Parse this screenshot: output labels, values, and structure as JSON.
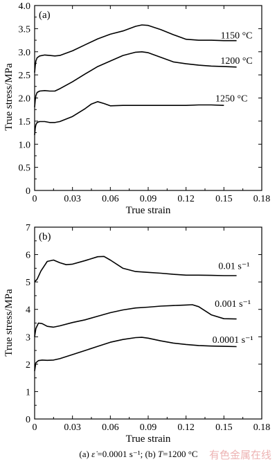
{
  "chart_data": [
    {
      "type": "line",
      "panel_label": "(a)",
      "xlabel": "True strain",
      "ylabel": "True stress/MPa",
      "xlim": [
        0,
        0.18
      ],
      "ylim": [
        0,
        4.0
      ],
      "xticks": [
        "0",
        "0.03",
        "0.06",
        "0.09",
        "0.12",
        "0.15",
        "0.18"
      ],
      "yticks": [
        "0",
        "0.5",
        "1.0",
        "1.5",
        "2.0",
        "2.5",
        "3.0",
        "3.5",
        "4.0"
      ],
      "grid": false,
      "series": [
        {
          "name": "1150 °C",
          "x": [
            0.0,
            0.0005,
            0.001,
            0.002,
            0.004,
            0.008,
            0.012,
            0.016,
            0.02,
            0.03,
            0.04,
            0.05,
            0.06,
            0.07,
            0.08,
            0.085,
            0.09,
            0.1,
            0.11,
            0.12,
            0.13,
            0.14,
            0.15,
            0.16
          ],
          "y": [
            2.55,
            2.7,
            2.8,
            2.87,
            2.91,
            2.93,
            2.92,
            2.91,
            2.92,
            3.02,
            3.15,
            3.28,
            3.38,
            3.45,
            3.55,
            3.58,
            3.57,
            3.48,
            3.37,
            3.27,
            3.25,
            3.25,
            3.24,
            3.24
          ]
        },
        {
          "name": "1200 °C",
          "x": [
            0.0,
            0.0005,
            0.001,
            0.002,
            0.004,
            0.008,
            0.012,
            0.016,
            0.02,
            0.03,
            0.04,
            0.05,
            0.06,
            0.07,
            0.08,
            0.085,
            0.09,
            0.1,
            0.11,
            0.12,
            0.13,
            0.14,
            0.15,
            0.16
          ],
          "y": [
            1.8,
            1.95,
            2.05,
            2.12,
            2.15,
            2.16,
            2.15,
            2.15,
            2.2,
            2.35,
            2.52,
            2.68,
            2.8,
            2.92,
            2.99,
            3.0,
            2.98,
            2.88,
            2.78,
            2.74,
            2.71,
            2.69,
            2.68,
            2.67
          ]
        },
        {
          "name": "1250 °C",
          "x": [
            0.0,
            0.0005,
            0.001,
            0.002,
            0.004,
            0.008,
            0.012,
            0.016,
            0.02,
            0.03,
            0.04,
            0.045,
            0.05,
            0.055,
            0.06,
            0.07,
            0.08,
            0.09,
            0.1,
            0.11,
            0.12,
            0.13,
            0.14,
            0.15
          ],
          "y": [
            1.2,
            1.35,
            1.42,
            1.47,
            1.49,
            1.49,
            1.47,
            1.47,
            1.49,
            1.6,
            1.77,
            1.87,
            1.92,
            1.88,
            1.83,
            1.84,
            1.84,
            1.84,
            1.84,
            1.84,
            1.84,
            1.85,
            1.85,
            1.84
          ]
        }
      ]
    },
    {
      "type": "line",
      "panel_label": "(b)",
      "xlabel": "True strain",
      "ylabel": "True stress/MPa",
      "xlim": [
        0,
        0.18
      ],
      "ylim": [
        0,
        7
      ],
      "xticks": [
        "0",
        "0.03",
        "0.06",
        "0.09",
        "0.12",
        "0.15",
        "0.18"
      ],
      "yticks": [
        "0",
        "1",
        "2",
        "3",
        "4",
        "5",
        "6",
        "7"
      ],
      "grid": false,
      "series": [
        {
          "name": "0.01 s⁻¹",
          "x": [
            0.0,
            0.002,
            0.005,
            0.01,
            0.015,
            0.02,
            0.025,
            0.03,
            0.04,
            0.05,
            0.055,
            0.06,
            0.07,
            0.08,
            0.09,
            0.1,
            0.11,
            0.12,
            0.13,
            0.14,
            0.15,
            0.16
          ],
          "y": [
            5.0,
            5.1,
            5.4,
            5.75,
            5.8,
            5.7,
            5.63,
            5.65,
            5.78,
            5.92,
            5.93,
            5.8,
            5.5,
            5.38,
            5.35,
            5.32,
            5.28,
            5.25,
            5.25,
            5.24,
            5.23,
            5.23
          ]
        },
        {
          "name": "0.001 s⁻¹",
          "x": [
            0.0,
            0.001,
            0.003,
            0.006,
            0.01,
            0.015,
            0.02,
            0.03,
            0.04,
            0.05,
            0.06,
            0.07,
            0.08,
            0.09,
            0.1,
            0.11,
            0.12,
            0.125,
            0.13,
            0.14,
            0.15,
            0.16
          ],
          "y": [
            3.0,
            3.3,
            3.5,
            3.48,
            3.38,
            3.35,
            3.4,
            3.52,
            3.62,
            3.75,
            3.88,
            3.98,
            4.05,
            4.08,
            4.12,
            4.14,
            4.16,
            4.17,
            4.1,
            3.8,
            3.66,
            3.65
          ]
        },
        {
          "name": "0.0001 s⁻¹",
          "x": [
            0.0,
            0.001,
            0.003,
            0.006,
            0.01,
            0.015,
            0.02,
            0.03,
            0.04,
            0.05,
            0.06,
            0.07,
            0.08,
            0.085,
            0.09,
            0.1,
            0.11,
            0.12,
            0.13,
            0.14,
            0.15,
            0.16
          ],
          "y": [
            1.75,
            2.05,
            2.13,
            2.15,
            2.14,
            2.15,
            2.2,
            2.35,
            2.5,
            2.65,
            2.8,
            2.9,
            2.97,
            2.98,
            2.95,
            2.85,
            2.77,
            2.72,
            2.68,
            2.66,
            2.65,
            2.64
          ]
        }
      ]
    }
  ],
  "caption": {
    "part_a_prefix": "(a)",
    "part_a_symbol": "ε̇",
    "part_a_value": " =0.0001 s⁻¹;",
    "part_b_prefix": " (b) ",
    "part_b_symbol": "T",
    "part_b_value": "=1200 °C"
  },
  "watermark": "有色金属在线"
}
